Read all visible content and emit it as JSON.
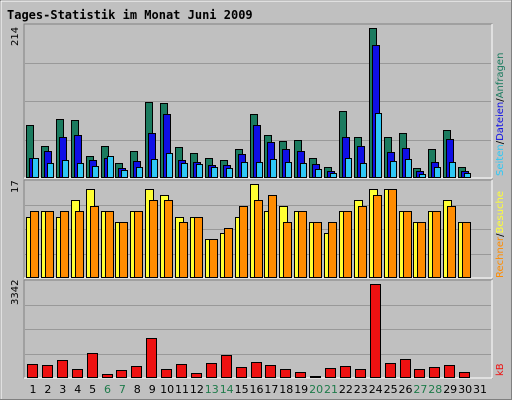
{
  "title": "Tages-Statistik im Monat Juni 2009",
  "colors": {
    "background": "#c0c0c0",
    "title": "#00007f",
    "anfragen": "#1b7b5f",
    "dateien": "#0f0fe6",
    "seiten": "#2ec8f5",
    "besuche": "#ffff33",
    "rechner": "#ff8c00",
    "kb": "#ee1111",
    "weekend_label": "#1e7b4a",
    "weekday_label": "#000000",
    "gridline": "#999999"
  },
  "side_labels": {
    "anfragen": "Anfragen",
    "dateien": "Dateien",
    "seiten": "Seiten",
    "besuche": "Besuche",
    "rechner": "Rechner",
    "kb": "kB",
    "separator": "/"
  },
  "chart_data": [
    {
      "type": "bar",
      "panel": "top",
      "max_label": "214",
      "ylim": [
        0,
        214
      ],
      "categories": [
        "1",
        "2",
        "3",
        "4",
        "5",
        "6",
        "7",
        "8",
        "9",
        "10",
        "11",
        "12",
        "13",
        "14",
        "15",
        "16",
        "17",
        "18",
        "19",
        "20",
        "21",
        "22",
        "23",
        "24",
        "25",
        "26",
        "27",
        "28",
        "29",
        "30",
        "31"
      ],
      "weekend_days": [
        "6",
        "7",
        "13",
        "14",
        "20",
        "21",
        "27",
        "28"
      ],
      "series": [
        {
          "name": "Anfragen",
          "values": [
            75,
            45,
            83,
            82,
            30,
            45,
            20,
            37,
            108,
            106,
            43,
            35,
            28,
            25,
            40,
            90,
            60,
            52,
            53,
            27,
            15,
            95,
            57,
            214,
            58,
            63,
            13,
            40,
            68,
            15,
            0
          ]
        },
        {
          "name": "Dateien",
          "values": [
            28,
            37,
            57,
            60,
            24,
            27,
            13,
            23,
            63,
            90,
            25,
            22,
            17,
            17,
            33,
            74,
            50,
            40,
            37,
            18,
            9,
            57,
            45,
            190,
            36,
            41,
            8,
            22,
            54,
            8,
            0
          ]
        },
        {
          "name": "Seiten",
          "values": [
            27,
            20,
            25,
            20,
            16,
            30,
            10,
            15,
            26,
            34,
            20,
            18,
            15,
            13,
            22,
            22,
            26,
            22,
            20,
            12,
            6,
            27,
            20,
            92,
            23,
            26,
            5,
            15,
            22,
            6,
            0
          ]
        }
      ]
    },
    {
      "type": "bar",
      "panel": "middle",
      "max_label": "17",
      "ylim": [
        0,
        17
      ],
      "categories": [
        "1",
        "2",
        "3",
        "4",
        "5",
        "6",
        "7",
        "8",
        "9",
        "10",
        "11",
        "12",
        "13",
        "14",
        "15",
        "16",
        "17",
        "18",
        "19",
        "20",
        "21",
        "22",
        "23",
        "24",
        "25",
        "26",
        "27",
        "28",
        "29",
        "30",
        "31"
      ],
      "series": [
        {
          "name": "Besuche",
          "values": [
            11,
            12,
            11,
            14,
            16,
            12,
            10,
            12,
            16,
            15,
            11,
            11,
            7,
            8,
            11,
            17,
            12,
            13,
            12,
            10,
            8,
            12,
            14,
            16,
            16,
            12,
            10,
            12,
            14,
            10,
            0
          ]
        },
        {
          "name": "Rechner",
          "values": [
            12,
            12,
            12,
            12,
            13,
            12,
            10,
            12,
            14,
            14,
            10,
            11,
            7,
            9,
            13,
            14,
            15,
            10,
            12,
            10,
            10,
            12,
            13,
            15,
            16,
            12,
            10,
            12,
            13,
            10,
            0
          ]
        }
      ]
    },
    {
      "type": "bar",
      "panel": "bottom",
      "max_label": "3342",
      "ylim": [
        0,
        3342
      ],
      "categories": [
        "1",
        "2",
        "3",
        "4",
        "5",
        "6",
        "7",
        "8",
        "9",
        "10",
        "11",
        "12",
        "13",
        "14",
        "15",
        "16",
        "17",
        "18",
        "19",
        "20",
        "21",
        "22",
        "23",
        "24",
        "25",
        "26",
        "27",
        "28",
        "29",
        "30",
        "31"
      ],
      "series": [
        {
          "name": "kB",
          "values": [
            470,
            420,
            600,
            280,
            860,
            100,
            240,
            380,
            1400,
            270,
            450,
            150,
            500,
            800,
            350,
            530,
            430,
            270,
            170,
            40,
            310,
            390,
            280,
            3342,
            500,
            660,
            300,
            350,
            420,
            170,
            0
          ]
        }
      ]
    }
  ]
}
